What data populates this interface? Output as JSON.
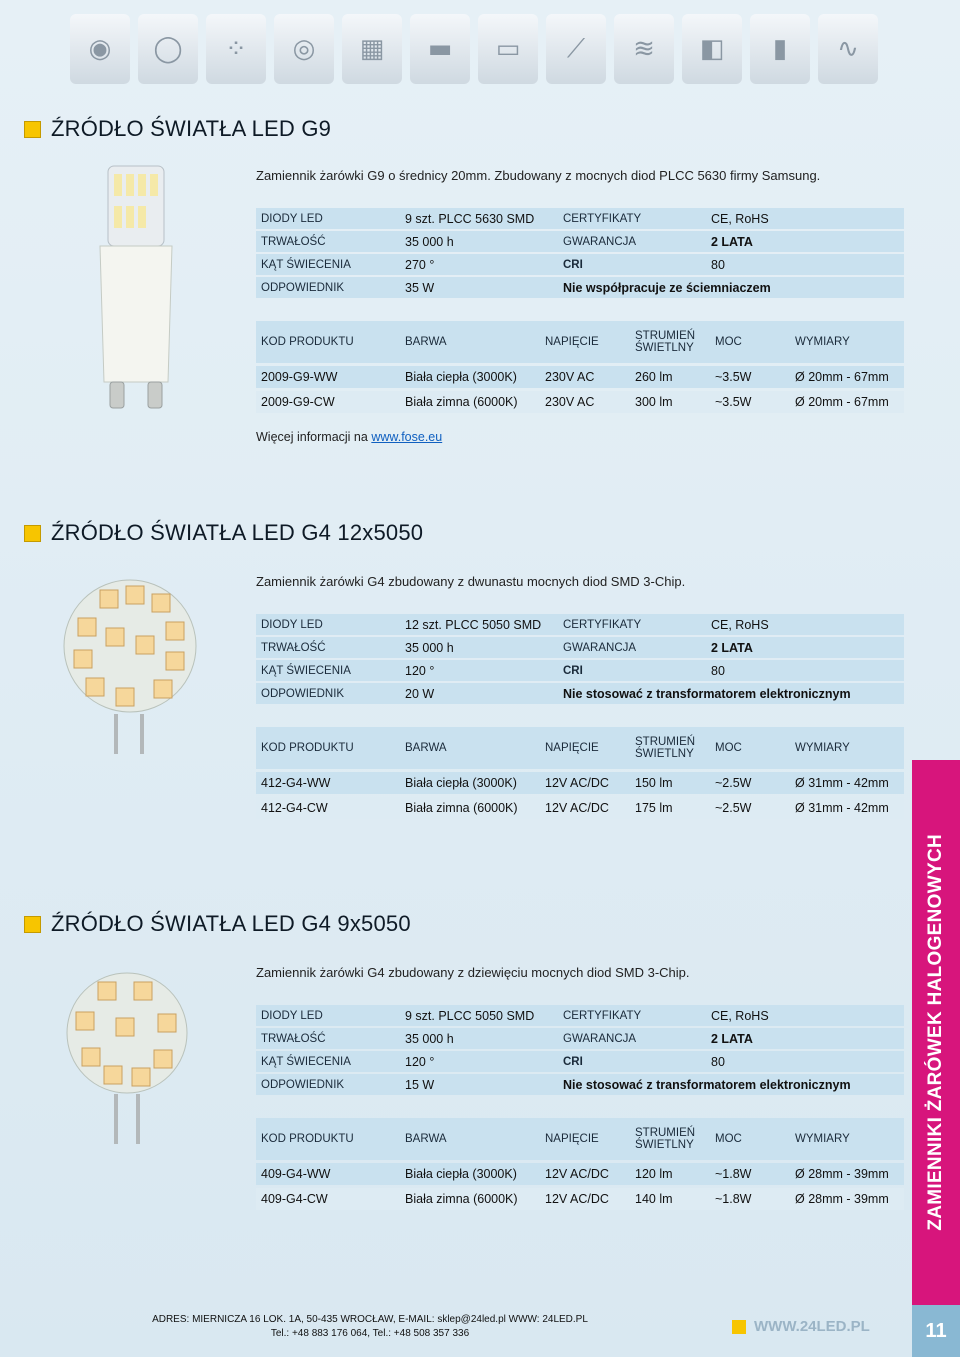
{
  "top_strip": {
    "icons": [
      "bulb-icon",
      "bulb-icon",
      "g4-module-icon",
      "led-strip-icon",
      "remote-icon",
      "controller-icon",
      "amplifier-icon",
      "connector-icon",
      "led-strip-icon",
      "floodlight-icon",
      "power-supply-icon",
      "cable-icon"
    ]
  },
  "sections": [
    {
      "title": "ŹRÓDŁO ŚWIATŁA LED G9",
      "description": "Zamiennik żarówki G9 o średnicy 20mm. Zbudowany z mocnych diod PLCC 5630 firmy Samsung.",
      "specs": [
        [
          "DIODY LED",
          "9 szt. PLCC 5630 SMD",
          "CERTYFIKATY",
          "CE, RoHS"
        ],
        [
          "TRWAŁOŚĆ",
          "35 000 h",
          "GWARANCJA",
          "2 LATA"
        ],
        [
          "KĄT ŚWIECENIA",
          "270 °",
          "CRI",
          "80"
        ]
      ],
      "replacement_label": "ODPOWIEDNIK",
      "replacement_value": "35 W",
      "replacement_note": "Nie współpracuje ze ściemniaczem",
      "products": [
        [
          "2009-G9-WW",
          "Biała ciepła (3000K)",
          "230V AC",
          "260 lm",
          "~3.5W",
          "Ø 20mm - 67mm"
        ],
        [
          "2009-G9-CW",
          "Biała zimna (6000K)",
          "230V AC",
          "300 lm",
          "~3.5W",
          "Ø 20mm - 67mm"
        ]
      ],
      "more_info_prefix": "Więcej informacji na ",
      "more_info_link": "www.fose.eu"
    },
    {
      "title": "ŹRÓDŁO ŚWIATŁA LED G4 12x5050",
      "description": "Zamiennik żarówki G4 zbudowany z dwunastu mocnych diod SMD 3-Chip.",
      "specs": [
        [
          "DIODY LED",
          "12 szt. PLCC 5050 SMD",
          "CERTYFIKATY",
          "CE, RoHS"
        ],
        [
          "TRWAŁOŚĆ",
          "35 000 h",
          "GWARANCJA",
          "2 LATA"
        ],
        [
          "KĄT ŚWIECENIA",
          "120 °",
          "CRI",
          "80"
        ]
      ],
      "replacement_label": "ODPOWIEDNIK",
      "replacement_value": "20 W",
      "replacement_note": "Nie stosować z transformatorem elektronicznym",
      "products": [
        [
          "412-G4-WW",
          "Biała ciepła (3000K)",
          "12V AC/DC",
          "150 lm",
          "~2.5W",
          "Ø 31mm - 42mm"
        ],
        [
          "412-G4-CW",
          "Biała zimna (6000K)",
          "12V AC/DC",
          "175 lm",
          "~2.5W",
          "Ø 31mm - 42mm"
        ]
      ]
    },
    {
      "title": "ŹRÓDŁO ŚWIATŁA LED G4 9x5050",
      "description": "Zamiennik żarówki G4 zbudowany z dziewięciu mocnych diod SMD 3-Chip.",
      "specs": [
        [
          "DIODY LED",
          "9 szt. PLCC 5050 SMD",
          "CERTYFIKATY",
          "CE, RoHS"
        ],
        [
          "TRWAŁOŚĆ",
          "35 000 h",
          "GWARANCJA",
          "2 LATA"
        ],
        [
          "KĄT ŚWIECENIA",
          "120 °",
          "CRI",
          "80"
        ]
      ],
      "replacement_label": "ODPOWIEDNIK",
      "replacement_value": "15 W",
      "replacement_note": "Nie stosować z transformatorem elektronicznym",
      "products": [
        [
          "409-G4-WW",
          "Biała ciepła (3000K)",
          "12V AC/DC",
          "120 lm",
          "~1.8W",
          "Ø 28mm - 39mm"
        ],
        [
          "409-G4-CW",
          "Biała zimna (6000K)",
          "12V AC/DC",
          "140 lm",
          "~1.8W",
          "Ø 28mm - 39mm"
        ]
      ]
    }
  ],
  "product_headers": [
    "KOD PRODUKTU",
    "BARWA",
    "NAPIĘCIE",
    "STRUMIEŃ ŚWIETLNY",
    "MOC",
    "WYMIARY"
  ],
  "sidebar_text": "ZAMIENNIKI ŻARÓWEK HALOGENOWYCH",
  "page_number": "11",
  "footer": {
    "address_line1": "ADRES: MIERNICZA 16  LOK. 1A, 50-435 WROCŁAW, E-MAIL: sklep@24led.pl WWW: 24LED.PL",
    "address_line2": "Tel.: +48 883 176 064, Tel.: +48 508 357 336",
    "website": "WWW.24LED.PL"
  },
  "colors": {
    "accent_yellow": "#f7c500",
    "table_blue": "#c9e1ef",
    "sidebar_pink": "#d7157c",
    "page_number_blue": "#89b8d3"
  }
}
